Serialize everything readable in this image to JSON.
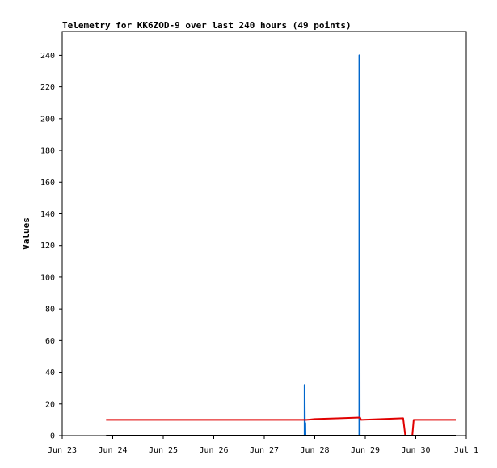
{
  "chart_data": {
    "type": "line",
    "title": "Telemetry for KK6ZOD-9 over last 240 hours (49 points)",
    "xlabel": "",
    "ylabel": "Values",
    "ylim": [
      0,
      255
    ],
    "xlim": [
      "2020-06-23T00:00",
      "2020-07-01T00:00"
    ],
    "x_ticks": [
      "Jun 23",
      "Jun 24",
      "Jun 25",
      "Jun 26",
      "Jun 27",
      "Jun 28",
      "Jun 29",
      "Jun 30",
      "Jul 1"
    ],
    "y_ticks": [
      0,
      20,
      40,
      60,
      80,
      100,
      120,
      140,
      160,
      180,
      200,
      220,
      240
    ],
    "grid": false,
    "legend": "none",
    "series": [
      {
        "color": "#0066cc",
        "points": [
          [
            "2020-06-27T19:10",
            0
          ],
          [
            "2020-06-27T19:10",
            32
          ],
          [
            "2020-06-27T19:20",
            0
          ],
          [
            "2020-06-27T19:30",
            8
          ],
          [
            "2020-06-27T19:35",
            0
          ],
          [
            "2020-06-28T21:10",
            0
          ],
          [
            "2020-06-28T21:10",
            240
          ],
          [
            "2020-06-28T21:20",
            0
          ]
        ]
      },
      {
        "color": "#e00000",
        "points": [
          [
            "2020-06-23T20:50",
            10
          ],
          [
            "2020-06-27T19:00",
            10
          ],
          [
            "2020-06-27T20:00",
            10
          ],
          [
            "2020-06-28T00:00",
            10.5
          ],
          [
            "2020-06-28T12:00",
            11
          ],
          [
            "2020-06-28T21:30",
            11.5
          ],
          [
            "2020-06-28T22:00",
            10
          ],
          [
            "2020-06-29T18:00",
            11
          ],
          [
            "2020-06-29T19:00",
            0
          ],
          [
            "2020-06-29T22:20",
            0
          ],
          [
            "2020-06-29T23:00",
            10
          ],
          [
            "2020-06-30T19:00",
            10
          ]
        ]
      },
      {
        "color": "#000000",
        "points": [
          [
            "2020-06-23T20:50",
            0
          ],
          [
            "2020-06-30T19:00",
            0
          ]
        ]
      }
    ]
  },
  "colors": {
    "axis": "#000000",
    "background": "#ffffff"
  }
}
